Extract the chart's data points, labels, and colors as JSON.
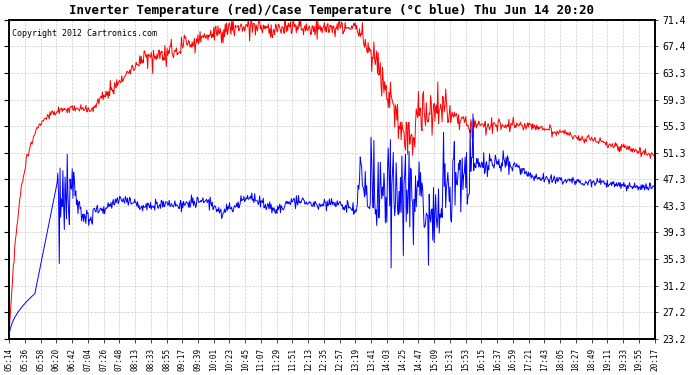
{
  "title": "Inverter Temperature (red)/Case Temperature (°C blue) Thu Jun 14 20:20",
  "copyright": "Copyright 2012 Cartronics.com",
  "ylabel_right": [
    "71.4",
    "67.4",
    "63.3",
    "59.3",
    "55.3",
    "51.3",
    "47.3",
    "43.3",
    "39.3",
    "35.3",
    "31.2",
    "27.2",
    "23.2"
  ],
  "yticks": [
    71.4,
    67.4,
    63.3,
    59.3,
    55.3,
    51.3,
    47.3,
    43.3,
    39.3,
    35.3,
    31.2,
    27.2,
    23.2
  ],
  "ymin": 23.2,
  "ymax": 71.4,
  "bg_color": "#ffffff",
  "plot_bg": "#ffffff",
  "grid_color": "#cccccc",
  "red_color": "#ff0000",
  "blue_color": "#0000ff",
  "xtick_labels": [
    "05:14",
    "05:36",
    "05:58",
    "06:20",
    "06:42",
    "07:04",
    "07:26",
    "07:48",
    "08:13",
    "08:33",
    "08:55",
    "09:17",
    "09:39",
    "10:01",
    "10:23",
    "10:45",
    "11:07",
    "11:29",
    "11:51",
    "12:13",
    "12:35",
    "12:57",
    "13:19",
    "13:41",
    "14:03",
    "14:25",
    "14:47",
    "15:09",
    "15:31",
    "15:53",
    "16:15",
    "16:37",
    "16:59",
    "17:21",
    "17:43",
    "18:05",
    "18:27",
    "18:49",
    "19:11",
    "19:33",
    "19:55",
    "20:17"
  ]
}
